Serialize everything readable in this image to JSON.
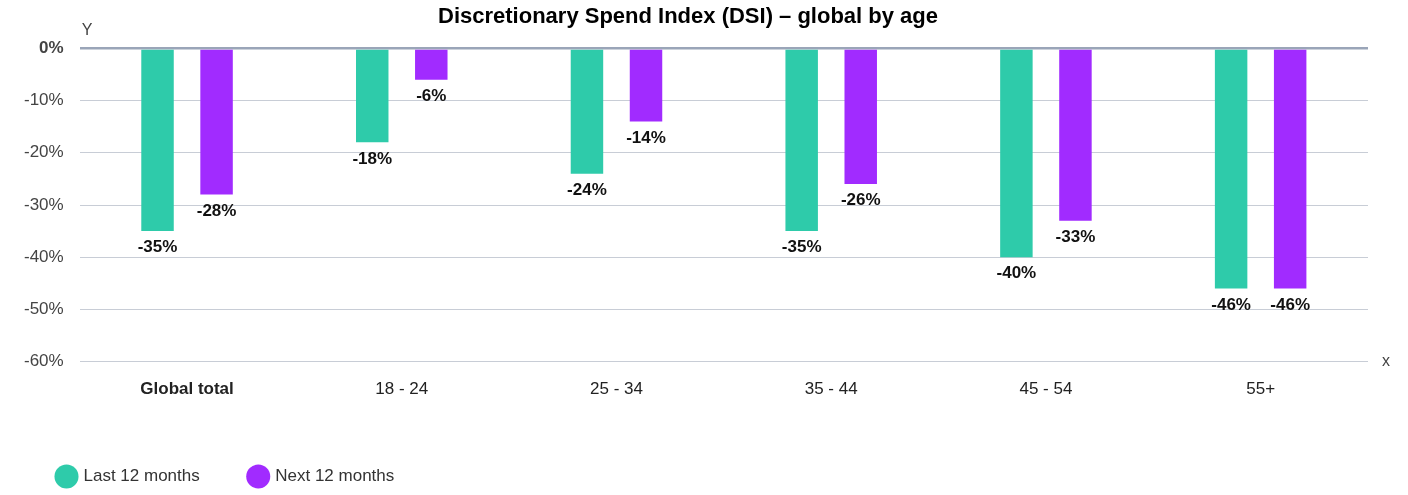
{
  "chart_data": {
    "type": "bar",
    "title": "Discretionary Spend Index (DSI) – global by age",
    "xlabel": "x",
    "ylabel": "Y",
    "categories": [
      "Global total",
      "18 - 24",
      "25 - 34",
      "35 - 44",
      "45 - 54",
      "55+"
    ],
    "series": [
      {
        "name": "Last 12 months",
        "color": "#2ecbaa",
        "values": [
          -35,
          -18,
          -24,
          -35,
          -40,
          -46
        ],
        "value_labels": [
          "-35%",
          "-18%",
          "-24%",
          "-35%",
          "-40%",
          "-46%"
        ]
      },
      {
        "name": "Next 12 months",
        "color": "#a12bff",
        "values": [
          -28,
          -6,
          -14,
          -26,
          -33,
          -46
        ],
        "value_labels": [
          "-28%",
          "-6%",
          "-14%",
          "-26%",
          "-33%",
          "-46%"
        ]
      }
    ],
    "ylim": [
      -60,
      0
    ],
    "yticks": [
      {
        "value": -60,
        "label": "-60%"
      },
      {
        "value": -50,
        "label": "-50%"
      },
      {
        "value": -40,
        "label": "-40%"
      },
      {
        "value": -30,
        "label": "-30%"
      },
      {
        "value": -20,
        "label": "-20%"
      },
      {
        "value": -10,
        "label": "-10%"
      },
      {
        "value": 0,
        "label": "0%"
      }
    ],
    "grid": "y",
    "legend": "bottom left"
  }
}
